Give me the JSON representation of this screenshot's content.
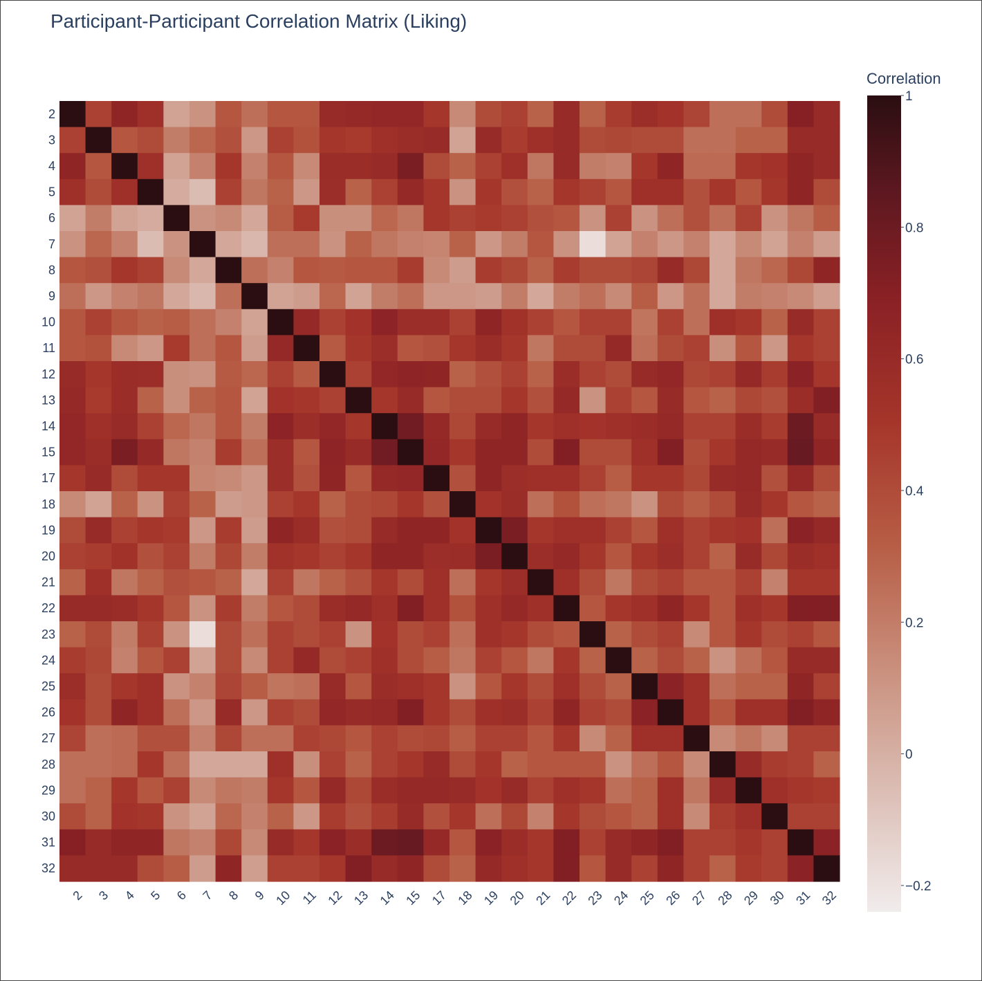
{
  "chart_data": {
    "type": "heatmap",
    "title": "Participant-Participant Correlation Matrix (Liking)",
    "colorbar_title": "Correlation",
    "labels": [
      "2",
      "3",
      "4",
      "5",
      "6",
      "7",
      "8",
      "9",
      "10",
      "11",
      "12",
      "13",
      "14",
      "15",
      "17",
      "18",
      "19",
      "20",
      "21",
      "22",
      "23",
      "24",
      "25",
      "26",
      "27",
      "28",
      "29",
      "30",
      "31",
      "32"
    ],
    "zmin": -0.24,
    "zmax": 1.0,
    "colorbar_ticks": [
      -0.2,
      0,
      0.2,
      0.4,
      0.6,
      0.8,
      1
    ],
    "colorbar_tick_labels": [
      "−0.2",
      "0",
      "0.2",
      "0.4",
      "0.6",
      "0.8",
      "1"
    ],
    "colorscale": [
      [
        0,
        "#f1ecec"
      ],
      [
        0.15,
        "#dbbdb4"
      ],
      [
        0.3,
        "#c98f7c"
      ],
      [
        0.45,
        "#b75d45"
      ],
      [
        0.6,
        "#a5352a"
      ],
      [
        0.75,
        "#8a2125"
      ],
      [
        0.88,
        "#5e1820"
      ],
      [
        1,
        "#2a0e11"
      ]
    ],
    "z": [
      [
        1.0,
        0.45,
        0.65,
        0.55,
        0.05,
        0.12,
        0.35,
        0.25,
        0.35,
        0.35,
        0.6,
        0.62,
        0.63,
        0.63,
        0.5,
        0.15,
        0.4,
        0.45,
        0.3,
        0.6,
        0.3,
        0.47,
        0.57,
        0.52,
        0.43,
        0.25,
        0.25,
        0.4,
        0.7,
        0.6
      ],
      [
        0.45,
        1.0,
        0.35,
        0.4,
        0.2,
        0.28,
        0.38,
        0.1,
        0.45,
        0.37,
        0.5,
        0.48,
        0.55,
        0.58,
        0.6,
        0.05,
        0.6,
        0.47,
        0.55,
        0.6,
        0.4,
        0.42,
        0.4,
        0.4,
        0.25,
        0.25,
        0.3,
        0.3,
        0.6,
        0.6
      ],
      [
        0.65,
        0.35,
        1.0,
        0.55,
        0.05,
        0.18,
        0.5,
        0.18,
        0.35,
        0.15,
        0.58,
        0.58,
        0.6,
        0.75,
        0.4,
        0.3,
        0.45,
        0.55,
        0.22,
        0.6,
        0.2,
        0.18,
        0.5,
        0.65,
        0.27,
        0.27,
        0.5,
        0.52,
        0.65,
        0.6
      ],
      [
        0.55,
        0.4,
        0.55,
        1.0,
        0.02,
        -0.05,
        0.45,
        0.22,
        0.3,
        0.1,
        0.57,
        0.3,
        0.45,
        0.62,
        0.5,
        0.12,
        0.5,
        0.38,
        0.3,
        0.5,
        0.45,
        0.35,
        0.55,
        0.55,
        0.38,
        0.5,
        0.35,
        0.5,
        0.65,
        0.4
      ],
      [
        0.05,
        0.2,
        0.05,
        0.02,
        1.0,
        0.12,
        0.15,
        0.03,
        0.32,
        0.48,
        0.13,
        0.13,
        0.28,
        0.22,
        0.5,
        0.45,
        0.48,
        0.45,
        0.38,
        0.35,
        0.12,
        0.45,
        0.12,
        0.25,
        0.38,
        0.25,
        0.45,
        0.12,
        0.22,
        0.32
      ],
      [
        0.12,
        0.28,
        0.18,
        -0.05,
        0.12,
        1.0,
        0.03,
        -0.03,
        0.25,
        0.25,
        0.12,
        0.3,
        0.22,
        0.18,
        0.17,
        0.3,
        0.1,
        0.2,
        0.35,
        0.12,
        -0.18,
        0.05,
        0.18,
        0.1,
        0.18,
        0.03,
        0.15,
        0.05,
        0.18,
        0.08
      ],
      [
        0.35,
        0.38,
        0.5,
        0.45,
        0.15,
        0.03,
        1.0,
        0.25,
        0.18,
        0.35,
        0.33,
        0.35,
        0.35,
        0.47,
        0.15,
        0.08,
        0.47,
        0.42,
        0.3,
        0.47,
        0.4,
        0.4,
        0.43,
        0.6,
        0.42,
        0.03,
        0.22,
        0.28,
        0.42,
        0.65
      ],
      [
        0.25,
        0.1,
        0.18,
        0.22,
        0.03,
        -0.03,
        0.25,
        1.0,
        0.05,
        0.08,
        0.28,
        0.05,
        0.2,
        0.25,
        0.1,
        0.1,
        0.08,
        0.2,
        0.03,
        0.2,
        0.25,
        0.15,
        0.32,
        0.1,
        0.25,
        0.03,
        0.2,
        0.18,
        0.15,
        0.07
      ],
      [
        0.35,
        0.45,
        0.35,
        0.3,
        0.32,
        0.25,
        0.18,
        0.05,
        1.0,
        0.62,
        0.45,
        0.52,
        0.67,
        0.57,
        0.57,
        0.45,
        0.65,
        0.53,
        0.45,
        0.35,
        0.45,
        0.45,
        0.23,
        0.45,
        0.25,
        0.55,
        0.5,
        0.3,
        0.6,
        0.45
      ],
      [
        0.35,
        0.37,
        0.15,
        0.1,
        0.48,
        0.25,
        0.35,
        0.08,
        0.62,
        1.0,
        0.33,
        0.5,
        0.57,
        0.35,
        0.38,
        0.5,
        0.58,
        0.5,
        0.22,
        0.4,
        0.4,
        0.62,
        0.25,
        0.4,
        0.45,
        0.13,
        0.35,
        0.1,
        0.5,
        0.45
      ],
      [
        0.6,
        0.5,
        0.58,
        0.57,
        0.13,
        0.12,
        0.33,
        0.28,
        0.45,
        0.33,
        1.0,
        0.45,
        0.63,
        0.66,
        0.65,
        0.3,
        0.38,
        0.45,
        0.3,
        0.58,
        0.45,
        0.4,
        0.6,
        0.63,
        0.42,
        0.45,
        0.62,
        0.47,
        0.68,
        0.5
      ],
      [
        0.62,
        0.48,
        0.58,
        0.3,
        0.13,
        0.3,
        0.35,
        0.05,
        0.52,
        0.5,
        0.45,
        1.0,
        0.5,
        0.6,
        0.35,
        0.4,
        0.4,
        0.5,
        0.38,
        0.62,
        0.12,
        0.45,
        0.35,
        0.6,
        0.35,
        0.3,
        0.42,
        0.38,
        0.58,
        0.72
      ],
      [
        0.63,
        0.55,
        0.6,
        0.45,
        0.28,
        0.22,
        0.35,
        0.2,
        0.67,
        0.57,
        0.63,
        0.5,
        1.0,
        0.78,
        0.62,
        0.42,
        0.6,
        0.65,
        0.5,
        0.55,
        0.52,
        0.55,
        0.58,
        0.62,
        0.45,
        0.45,
        0.58,
        0.47,
        0.8,
        0.6
      ],
      [
        0.63,
        0.58,
        0.75,
        0.62,
        0.22,
        0.18,
        0.47,
        0.25,
        0.57,
        0.35,
        0.66,
        0.6,
        0.78,
        1.0,
        0.63,
        0.5,
        0.65,
        0.65,
        0.4,
        0.72,
        0.4,
        0.4,
        0.55,
        0.72,
        0.4,
        0.5,
        0.62,
        0.6,
        0.82,
        0.65
      ],
      [
        0.5,
        0.6,
        0.4,
        0.5,
        0.5,
        0.17,
        0.15,
        0.1,
        0.57,
        0.38,
        0.65,
        0.35,
        0.62,
        0.63,
        1.0,
        0.38,
        0.65,
        0.57,
        0.55,
        0.55,
        0.45,
        0.32,
        0.5,
        0.5,
        0.42,
        0.6,
        0.62,
        0.38,
        0.62,
        0.4
      ],
      [
        0.15,
        0.05,
        0.3,
        0.12,
        0.45,
        0.3,
        0.08,
        0.1,
        0.45,
        0.5,
        0.3,
        0.4,
        0.42,
        0.5,
        0.38,
        1.0,
        0.52,
        0.58,
        0.25,
        0.37,
        0.25,
        0.22,
        0.12,
        0.4,
        0.32,
        0.4,
        0.6,
        0.5,
        0.35,
        0.3
      ],
      [
        0.4,
        0.6,
        0.45,
        0.5,
        0.48,
        0.1,
        0.47,
        0.08,
        0.65,
        0.58,
        0.38,
        0.4,
        0.6,
        0.65,
        0.65,
        0.52,
        1.0,
        0.75,
        0.5,
        0.55,
        0.55,
        0.45,
        0.35,
        0.55,
        0.45,
        0.5,
        0.52,
        0.25,
        0.68,
        0.62
      ],
      [
        0.45,
        0.47,
        0.53,
        0.38,
        0.45,
        0.2,
        0.42,
        0.2,
        0.53,
        0.5,
        0.45,
        0.5,
        0.65,
        0.65,
        0.57,
        0.58,
        0.75,
        1.0,
        0.57,
        0.62,
        0.5,
        0.35,
        0.5,
        0.57,
        0.45,
        0.3,
        0.6,
        0.42,
        0.58,
        0.55
      ],
      [
        0.3,
        0.55,
        0.22,
        0.3,
        0.38,
        0.35,
        0.3,
        0.03,
        0.45,
        0.22,
        0.3,
        0.38,
        0.5,
        0.4,
        0.55,
        0.25,
        0.5,
        0.57,
        1.0,
        0.55,
        0.4,
        0.22,
        0.4,
        0.45,
        0.35,
        0.35,
        0.45,
        0.18,
        0.5,
        0.5
      ],
      [
        0.6,
        0.6,
        0.58,
        0.5,
        0.35,
        0.12,
        0.47,
        0.2,
        0.35,
        0.4,
        0.58,
        0.62,
        0.55,
        0.72,
        0.55,
        0.37,
        0.55,
        0.62,
        0.55,
        1.0,
        0.35,
        0.5,
        0.55,
        0.65,
        0.5,
        0.35,
        0.55,
        0.5,
        0.72,
        0.72
      ],
      [
        0.3,
        0.4,
        0.2,
        0.45,
        0.12,
        -0.18,
        0.4,
        0.25,
        0.45,
        0.4,
        0.45,
        0.12,
        0.52,
        0.4,
        0.45,
        0.25,
        0.55,
        0.5,
        0.4,
        0.35,
        1.0,
        0.3,
        0.4,
        0.45,
        0.15,
        0.35,
        0.5,
        0.4,
        0.45,
        0.35
      ],
      [
        0.47,
        0.42,
        0.18,
        0.35,
        0.45,
        0.05,
        0.4,
        0.15,
        0.45,
        0.62,
        0.4,
        0.45,
        0.55,
        0.4,
        0.32,
        0.22,
        0.45,
        0.35,
        0.22,
        0.5,
        0.3,
        1.0,
        0.3,
        0.4,
        0.3,
        0.12,
        0.25,
        0.35,
        0.6,
        0.6
      ],
      [
        0.57,
        0.4,
        0.5,
        0.55,
        0.12,
        0.18,
        0.43,
        0.32,
        0.23,
        0.25,
        0.6,
        0.35,
        0.58,
        0.55,
        0.5,
        0.12,
        0.35,
        0.5,
        0.4,
        0.55,
        0.4,
        0.3,
        1.0,
        0.68,
        0.55,
        0.25,
        0.3,
        0.3,
        0.65,
        0.45
      ],
      [
        0.52,
        0.4,
        0.65,
        0.55,
        0.25,
        0.1,
        0.6,
        0.1,
        0.45,
        0.4,
        0.63,
        0.6,
        0.62,
        0.72,
        0.5,
        0.4,
        0.55,
        0.57,
        0.45,
        0.65,
        0.45,
        0.4,
        0.68,
        1.0,
        0.55,
        0.35,
        0.55,
        0.55,
        0.72,
        0.65
      ],
      [
        0.43,
        0.25,
        0.27,
        0.38,
        0.38,
        0.18,
        0.42,
        0.25,
        0.25,
        0.45,
        0.42,
        0.35,
        0.45,
        0.4,
        0.42,
        0.32,
        0.45,
        0.45,
        0.35,
        0.5,
        0.15,
        0.3,
        0.55,
        0.55,
        1.0,
        0.15,
        0.22,
        0.15,
        0.45,
        0.45
      ],
      [
        0.25,
        0.25,
        0.27,
        0.5,
        0.25,
        0.03,
        0.03,
        0.03,
        0.55,
        0.13,
        0.45,
        0.3,
        0.45,
        0.5,
        0.6,
        0.4,
        0.5,
        0.3,
        0.35,
        0.35,
        0.35,
        0.12,
        0.25,
        0.35,
        0.15,
        1.0,
        0.6,
        0.47,
        0.45,
        0.3
      ],
      [
        0.25,
        0.3,
        0.5,
        0.35,
        0.45,
        0.15,
        0.22,
        0.2,
        0.5,
        0.35,
        0.62,
        0.42,
        0.58,
        0.62,
        0.62,
        0.6,
        0.52,
        0.6,
        0.45,
        0.55,
        0.5,
        0.25,
        0.3,
        0.55,
        0.22,
        0.6,
        1.0,
        0.55,
        0.5,
        0.48
      ],
      [
        0.4,
        0.3,
        0.52,
        0.5,
        0.12,
        0.05,
        0.28,
        0.18,
        0.3,
        0.1,
        0.47,
        0.38,
        0.47,
        0.6,
        0.38,
        0.5,
        0.25,
        0.42,
        0.18,
        0.5,
        0.4,
        0.35,
        0.3,
        0.55,
        0.15,
        0.47,
        0.55,
        1.0,
        0.45,
        0.45
      ],
      [
        0.7,
        0.6,
        0.65,
        0.65,
        0.22,
        0.18,
        0.42,
        0.15,
        0.6,
        0.5,
        0.68,
        0.58,
        0.8,
        0.82,
        0.62,
        0.35,
        0.68,
        0.58,
        0.5,
        0.72,
        0.45,
        0.6,
        0.65,
        0.72,
        0.45,
        0.45,
        0.5,
        0.45,
        1.0,
        0.68
      ],
      [
        0.6,
        0.6,
        0.6,
        0.4,
        0.32,
        0.08,
        0.65,
        0.07,
        0.45,
        0.45,
        0.5,
        0.72,
        0.6,
        0.65,
        0.4,
        0.3,
        0.62,
        0.55,
        0.5,
        0.72,
        0.35,
        0.6,
        0.45,
        0.65,
        0.45,
        0.3,
        0.48,
        0.45,
        0.68,
        1.0
      ]
    ]
  }
}
